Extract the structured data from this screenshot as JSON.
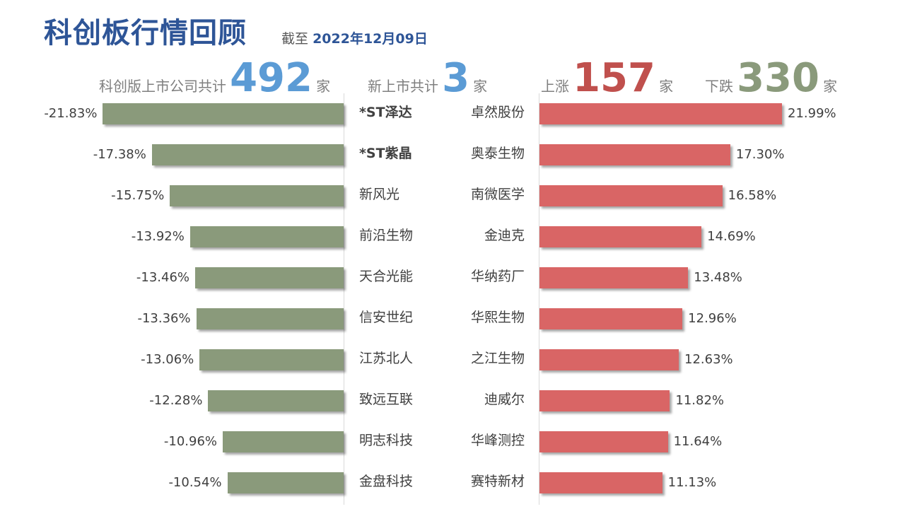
{
  "header": {
    "title": "科创板行情回顾",
    "as_of_label": "截至",
    "as_of_date": "2022年12月09日"
  },
  "stats": {
    "listed": {
      "label": "科创版上市公司共计",
      "value": "492",
      "unit": "家"
    },
    "new": {
      "label": "新上市共计",
      "value": "3",
      "unit": "家"
    },
    "up": {
      "label": "上涨",
      "value": "157",
      "unit": "家"
    },
    "down": {
      "label": "下跌",
      "value": "330",
      "unit": "家"
    }
  },
  "colors": {
    "title": "#2e5597",
    "decline_bar": "#8a9a7b",
    "gain_bar": "#d96565",
    "listed_number": "#5b9bd5",
    "up_number": "#c0504d",
    "down_number": "#8a9a7b"
  },
  "chart_data": [
    {
      "type": "bar",
      "orientation": "horizontal",
      "value_unit": "%",
      "categories": [
        "*ST泽达",
        "*ST紫晶",
        "新风光",
        "前沿生物",
        "天合光能",
        "信安世纪",
        "江苏北人",
        "致远互联",
        "明志科技",
        "金盘科技"
      ],
      "values": [
        -21.83,
        -17.38,
        -15.75,
        -13.92,
        -13.46,
        -13.36,
        -13.06,
        -12.28,
        -10.96,
        -10.54
      ],
      "labels": [
        "-21.83%",
        "-17.38%",
        "-15.75%",
        "-13.92%",
        "-13.46%",
        "-13.36%",
        "-13.06%",
        "-12.28%",
        "-10.96%",
        "-10.54%"
      ],
      "color": "#8a9a7b",
      "grid": false
    },
    {
      "type": "bar",
      "orientation": "horizontal",
      "value_unit": "%",
      "categories": [
        "卓然股份",
        "奥泰生物",
        "南微医学",
        "金迪克",
        "华纳药厂",
        "华熙生物",
        "之江生物",
        "迪威尔",
        "华峰测控",
        "赛特新材"
      ],
      "values": [
        21.99,
        17.3,
        16.58,
        14.69,
        13.48,
        12.96,
        12.63,
        11.82,
        11.64,
        11.13
      ],
      "labels": [
        "21.99%",
        "17.30%",
        "16.58%",
        "14.69%",
        "13.48%",
        "12.96%",
        "12.63%",
        "11.82%",
        "11.64%",
        "11.13%"
      ],
      "color": "#d96565",
      "grid": false
    }
  ]
}
